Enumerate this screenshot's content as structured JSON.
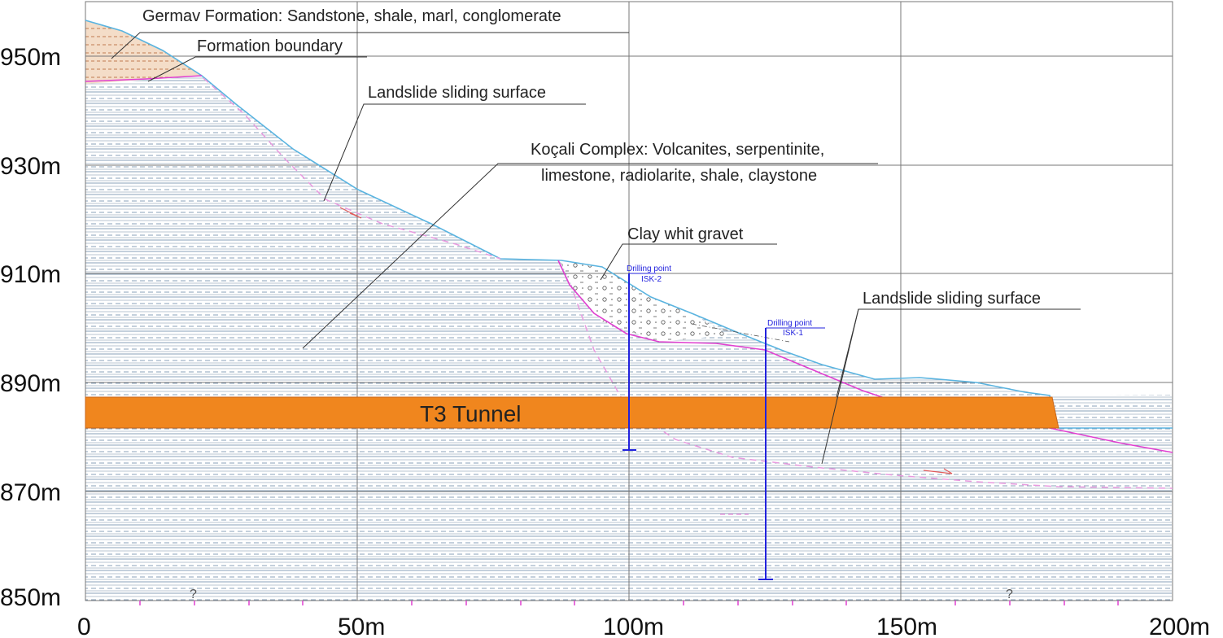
{
  "annotations": {
    "germav": "Germav Formation: Sandstone, shale, marl, conglomerate",
    "formation_boundary": "Formation boundary",
    "landslide_1": "Landslide sliding surface",
    "kocali_line1": "Koçali Complex: Volcanites, serpentinite,",
    "kocali_line2": "limestone, radiolarite, shale, claystone",
    "clay": "Clay whit gravet",
    "landslide_2": "Landslide sliding surface",
    "tunnel": "T3 Tunnel",
    "question_mark": "?"
  },
  "drilling": {
    "isk2_title": "Drilling point",
    "isk2_name": "ISK-2",
    "isk1_title": "Drilling point",
    "isk1_name": "ISK-1"
  },
  "axes": {
    "y_ticks": [
      "950m",
      "930m",
      "910m",
      "890m",
      "870m",
      "850m"
    ],
    "x_ticks": [
      "0",
      "50m",
      "100m",
      "150m",
      "200m"
    ]
  },
  "colors": {
    "ground_surface": "#5ab4e0",
    "sliding_surface": "#e040d0",
    "tunnel": "#f0861e",
    "drilling": "#2222dd",
    "germav_fill": "#d9a27a",
    "grid": "#777777"
  }
}
